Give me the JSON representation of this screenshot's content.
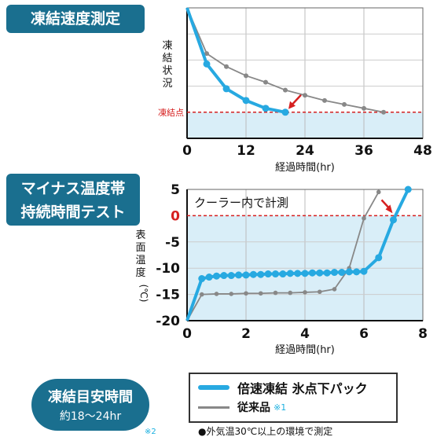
{
  "badges": {
    "chart1_title": "凍結速度測定",
    "chart2_title_line1": "マイナス温度帯",
    "chart2_title_line2": "持続時間テスト"
  },
  "chart_data": [
    {
      "type": "line",
      "title": "凍結速度測定",
      "xlabel": "経過時間(hr)",
      "ylabel": "凍結状況",
      "xticks": [
        "0",
        "12",
        "24",
        "36",
        "48"
      ],
      "xlim": [
        0,
        48
      ],
      "ylim": [
        0,
        1
      ],
      "reference_line": {
        "label": "凍結点",
        "y": 0.2,
        "color": "#d62020"
      },
      "y_axis_numbers_printed": false,
      "series": [
        {
          "name": "倍速凍結 氷点下パック",
          "color": "#27a9e1",
          "x": [
            0,
            4,
            8,
            12,
            16,
            20
          ],
          "y": [
            1.0,
            0.57,
            0.38,
            0.29,
            0.23,
            0.2
          ]
        },
        {
          "name": "従来品",
          "color": "#888888",
          "x": [
            0,
            4,
            8,
            12,
            16,
            20,
            24,
            28,
            32,
            36,
            40
          ],
          "y": [
            1.0,
            0.65,
            0.55,
            0.48,
            0.43,
            0.37,
            0.33,
            0.29,
            0.26,
            0.23,
            0.2
          ]
        }
      ],
      "grid": true
    },
    {
      "type": "line",
      "title": "マイナス温度帯持続時間テスト",
      "xlabel": "経過時間(hr)",
      "ylabel": "表面温度(℃)",
      "xticks": [
        "0",
        "2",
        "4",
        "6",
        "8"
      ],
      "yticks": [
        "5",
        "0",
        "-5",
        "-10",
        "-15",
        "-20"
      ],
      "xlim": [
        0,
        8
      ],
      "ylim": [
        -20,
        5
      ],
      "annotation": "クーラー内で計測",
      "reference_line": {
        "y": 0,
        "color": "#d62020"
      },
      "series": [
        {
          "name": "倍速凍結 氷点下パック",
          "color": "#27a9e1",
          "x": [
            0,
            0.5,
            0.75,
            1.0,
            1.25,
            1.5,
            1.75,
            2.0,
            2.25,
            2.5,
            2.75,
            3.0,
            3.25,
            3.5,
            3.75,
            4.0,
            4.25,
            4.5,
            4.75,
            5.0,
            5.25,
            5.5,
            5.75,
            6.0,
            6.5,
            7.0,
            7.5
          ],
          "y": [
            -20,
            -12.0,
            -11.7,
            -11.5,
            -11.4,
            -11.4,
            -11.3,
            -11.3,
            -11.2,
            -11.2,
            -11.1,
            -11.1,
            -11.1,
            -11.0,
            -11.0,
            -11.0,
            -10.9,
            -10.9,
            -10.9,
            -10.8,
            -10.8,
            -10.7,
            -10.7,
            -10.6,
            -8.0,
            -0.8,
            5.0
          ]
        },
        {
          "name": "従来品",
          "color": "#888888",
          "x": [
            0,
            0.5,
            1.0,
            1.5,
            2.0,
            2.5,
            3.0,
            3.5,
            4.0,
            4.5,
            5.0,
            5.5,
            6.0,
            6.5
          ],
          "y": [
            -20,
            -15.0,
            -14.9,
            -14.9,
            -14.8,
            -14.8,
            -14.7,
            -14.7,
            -14.6,
            -14.5,
            -14.0,
            -10.0,
            -0.5,
            4.5
          ]
        }
      ],
      "grid": true
    }
  ],
  "footer": {
    "pill_line1": "凍結目安時間",
    "pill_line2": "約18〜24hr",
    "pill_note": "※2",
    "legend_item1": "倍速凍結 氷点下パック",
    "legend_item2": "従来品",
    "legend_item2_note": "※1",
    "env_note": "●外気温30℃以上の環境で測定"
  },
  "colors": {
    "accent_blue": "#27a9e1",
    "badge_teal": "#1a6f8f",
    "grey_line": "#888888",
    "red": "#d62020",
    "frozen_zone": "#d9eef8"
  }
}
